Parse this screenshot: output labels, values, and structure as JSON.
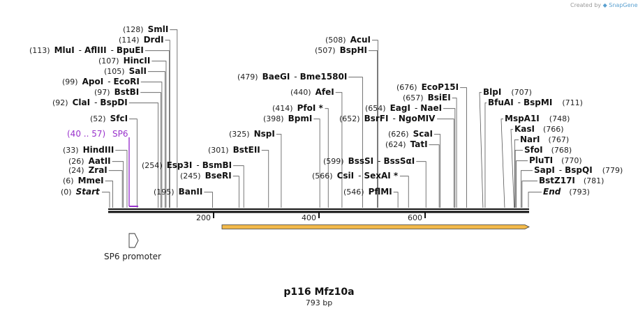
{
  "credit": {
    "created_by": "Created by",
    "brand": "SnapGene"
  },
  "title": "p116 Mfz10a",
  "length_label": "793 bp",
  "sequence_length": 793,
  "axis_ticks": [
    "200",
    "400",
    "600"
  ],
  "colors": {
    "primer": "#9932cc",
    "orf_fill": "#f2b94a",
    "orf_outline": "#3a3a3a",
    "backbone": "#111111"
  },
  "primer": {
    "range": "(40 .. 57)",
    "name": "SP6",
    "start": 40,
    "end": 57
  },
  "features": [
    {
      "name": "SP6 promoter",
      "icon": "promoter-arrow-icon",
      "start": 19,
      "end": 37
    }
  ],
  "orf": {
    "start": 208,
    "end": 793,
    "direction": "forward"
  },
  "sites": [
    {
      "pos": "(128)",
      "bp": 128,
      "names": [
        "SmlI"
      ]
    },
    {
      "pos": "(114)",
      "bp": 114,
      "names": [
        "DrdI"
      ]
    },
    {
      "pos": "(113)",
      "bp": 113,
      "names": [
        "MluI",
        "AflIII",
        "BpuEI"
      ]
    },
    {
      "pos": "(107)",
      "bp": 107,
      "names": [
        "HincII"
      ]
    },
    {
      "pos": "(105)",
      "bp": 105,
      "names": [
        "SalI"
      ]
    },
    {
      "pos": "(99)",
      "bp": 99,
      "names": [
        "ApoI",
        "EcoRI"
      ]
    },
    {
      "pos": "(97)",
      "bp": 97,
      "names": [
        "BstBI"
      ]
    },
    {
      "pos": "(92)",
      "bp": 92,
      "names": [
        "ClaI",
        "BspDI"
      ]
    },
    {
      "pos": "(52)",
      "bp": 52,
      "names": [
        "SfcI"
      ]
    },
    {
      "pos": "(33)",
      "bp": 33,
      "names": [
        "HindIII"
      ]
    },
    {
      "pos": "(26)",
      "bp": 26,
      "names": [
        "AatII"
      ]
    },
    {
      "pos": "(24)",
      "bp": 24,
      "names": [
        "ZraI"
      ]
    },
    {
      "pos": "(6)",
      "bp": 6,
      "names": [
        "MmeI"
      ]
    },
    {
      "pos": "(0)",
      "bp": 0,
      "names": [
        "Start"
      ]
    },
    {
      "pos": "(254)",
      "bp": 254,
      "names": [
        "Esp3I",
        "BsmBI"
      ]
    },
    {
      "pos": "(245)",
      "bp": 245,
      "names": [
        "BseRI"
      ]
    },
    {
      "pos": "(195)",
      "bp": 195,
      "names": [
        "BanII"
      ]
    },
    {
      "pos": "(325)",
      "bp": 325,
      "names": [
        "NspI"
      ]
    },
    {
      "pos": "(301)",
      "bp": 301,
      "names": [
        "BstEII"
      ]
    },
    {
      "pos": "(508)",
      "bp": 508,
      "names": [
        "AcuI"
      ]
    },
    {
      "pos": "(507)",
      "bp": 507,
      "names": [
        "BspHI"
      ]
    },
    {
      "pos": "(479)",
      "bp": 479,
      "names": [
        "BaeGI",
        "Bme1580I"
      ]
    },
    {
      "pos": "(440)",
      "bp": 440,
      "names": [
        "AfeI"
      ]
    },
    {
      "pos": "(414)",
      "bp": 414,
      "names": [
        "PfoI *"
      ]
    },
    {
      "pos": "(398)",
      "bp": 398,
      "names": [
        "BpmI"
      ]
    },
    {
      "pos": "(654)",
      "bp": 654,
      "names": [
        "EagI",
        "NaeI"
      ]
    },
    {
      "pos": "(652)",
      "bp": 652,
      "names": [
        "BsrFI",
        "NgoMIV"
      ]
    },
    {
      "pos": "(599)",
      "bp": 599,
      "names": [
        "BssSI",
        "BssSαI"
      ]
    },
    {
      "pos": "(566)",
      "bp": 566,
      "names": [
        "CsiI",
        "SexAI *"
      ]
    },
    {
      "pos": "(546)",
      "bp": 546,
      "names": [
        "PflMI"
      ]
    },
    {
      "pos": "(676)",
      "bp": 676,
      "names": [
        "EcoP15I"
      ]
    },
    {
      "pos": "(657)",
      "bp": 657,
      "names": [
        "BsiEI"
      ]
    },
    {
      "pos": "(626)",
      "bp": 626,
      "names": [
        "ScaI"
      ]
    },
    {
      "pos": "(624)",
      "bp": 624,
      "names": [
        "TatI"
      ]
    },
    {
      "pos": "(707)",
      "bp": 707,
      "names": [
        "BlpI"
      ]
    },
    {
      "pos": "(711)",
      "bp": 711,
      "names": [
        "BfuAI",
        "BspMI"
      ]
    },
    {
      "pos": "(748)",
      "bp": 748,
      "names": [
        "MspA1I"
      ]
    },
    {
      "pos": "(766)",
      "bp": 766,
      "names": [
        "KasI"
      ]
    },
    {
      "pos": "(767)",
      "bp": 767,
      "names": [
        "NarI"
      ]
    },
    {
      "pos": "(768)",
      "bp": 768,
      "names": [
        "SfoI"
      ]
    },
    {
      "pos": "(770)",
      "bp": 770,
      "names": [
        "PluTI"
      ]
    },
    {
      "pos": "(779)",
      "bp": 779,
      "names": [
        "SapI",
        "BspQI"
      ]
    },
    {
      "pos": "(781)",
      "bp": 781,
      "names": [
        "BstZ17I"
      ]
    },
    {
      "pos": "(793)",
      "bp": 793,
      "names": [
        "End"
      ]
    }
  ]
}
